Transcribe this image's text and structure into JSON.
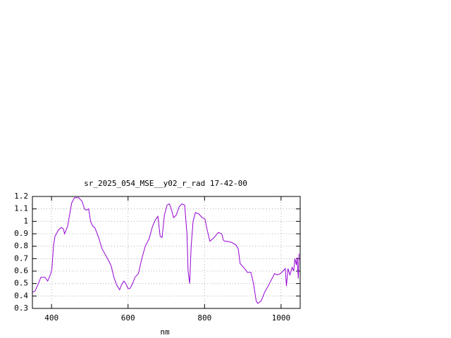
{
  "chart_data": {
    "type": "line",
    "title": "sr_2025_054_MSE__y02_r_rad 17-42-00",
    "x_label": "nm",
    "color": "#9400d3",
    "grid": true,
    "xlim": [
      350,
      1050
    ],
    "xticks": [
      400,
      600,
      800,
      1000
    ],
    "ylim": [
      0.3,
      1.2
    ],
    "yticks": [
      0.3,
      0.4,
      0.5,
      0.6,
      0.7,
      0.8,
      0.9,
      1,
      1.1,
      1.2
    ],
    "x": [
      350,
      357,
      367,
      372,
      383,
      390,
      398,
      401,
      405,
      409,
      418,
      425,
      431,
      434,
      442,
      447,
      453,
      460,
      471,
      480,
      486,
      491,
      497,
      502,
      508,
      513,
      522,
      532,
      541,
      550,
      556,
      563,
      570,
      578,
      583,
      589,
      594,
      600,
      605,
      612,
      618,
      627,
      636,
      645,
      655,
      664,
      671,
      678,
      684,
      689,
      695,
      702,
      708,
      713,
      719,
      726,
      734,
      741,
      748,
      754,
      757,
      761,
      765,
      770,
      776,
      785,
      794,
      801,
      807,
      814,
      825,
      836,
      845,
      849,
      853,
      860,
      871,
      882,
      888,
      893,
      902,
      912,
      921,
      928,
      935,
      939,
      948,
      957,
      968,
      978,
      983,
      990,
      998,
      1005,
      1011,
      1014,
      1018,
      1023,
      1029,
      1033,
      1036,
      1040,
      1042,
      1045,
      1047
    ],
    "values": [
      0.43,
      0.44,
      0.51,
      0.55,
      0.55,
      0.52,
      0.58,
      0.62,
      0.8,
      0.88,
      0.93,
      0.95,
      0.94,
      0.9,
      0.96,
      1.05,
      1.15,
      1.19,
      1.19,
      1.16,
      1.1,
      1.09,
      1.1,
      1.0,
      0.96,
      0.95,
      0.88,
      0.78,
      0.73,
      0.68,
      0.64,
      0.55,
      0.49,
      0.45,
      0.49,
      0.52,
      0.5,
      0.46,
      0.46,
      0.5,
      0.55,
      0.58,
      0.7,
      0.8,
      0.86,
      0.96,
      1.01,
      1.04,
      0.88,
      0.87,
      1.05,
      1.13,
      1.14,
      1.1,
      1.03,
      1.05,
      1.12,
      1.14,
      1.13,
      0.9,
      0.6,
      0.5,
      0.8,
      1.0,
      1.07,
      1.06,
      1.03,
      1.02,
      0.93,
      0.84,
      0.87,
      0.91,
      0.9,
      0.85,
      0.84,
      0.84,
      0.83,
      0.81,
      0.78,
      0.66,
      0.63,
      0.59,
      0.59,
      0.5,
      0.36,
      0.34,
      0.36,
      0.43,
      0.49,
      0.55,
      0.58,
      0.57,
      0.58,
      0.6,
      0.62,
      0.48,
      0.62,
      0.57,
      0.63,
      0.6,
      0.7,
      0.65,
      0.71,
      0.54,
      0.74
    ]
  }
}
